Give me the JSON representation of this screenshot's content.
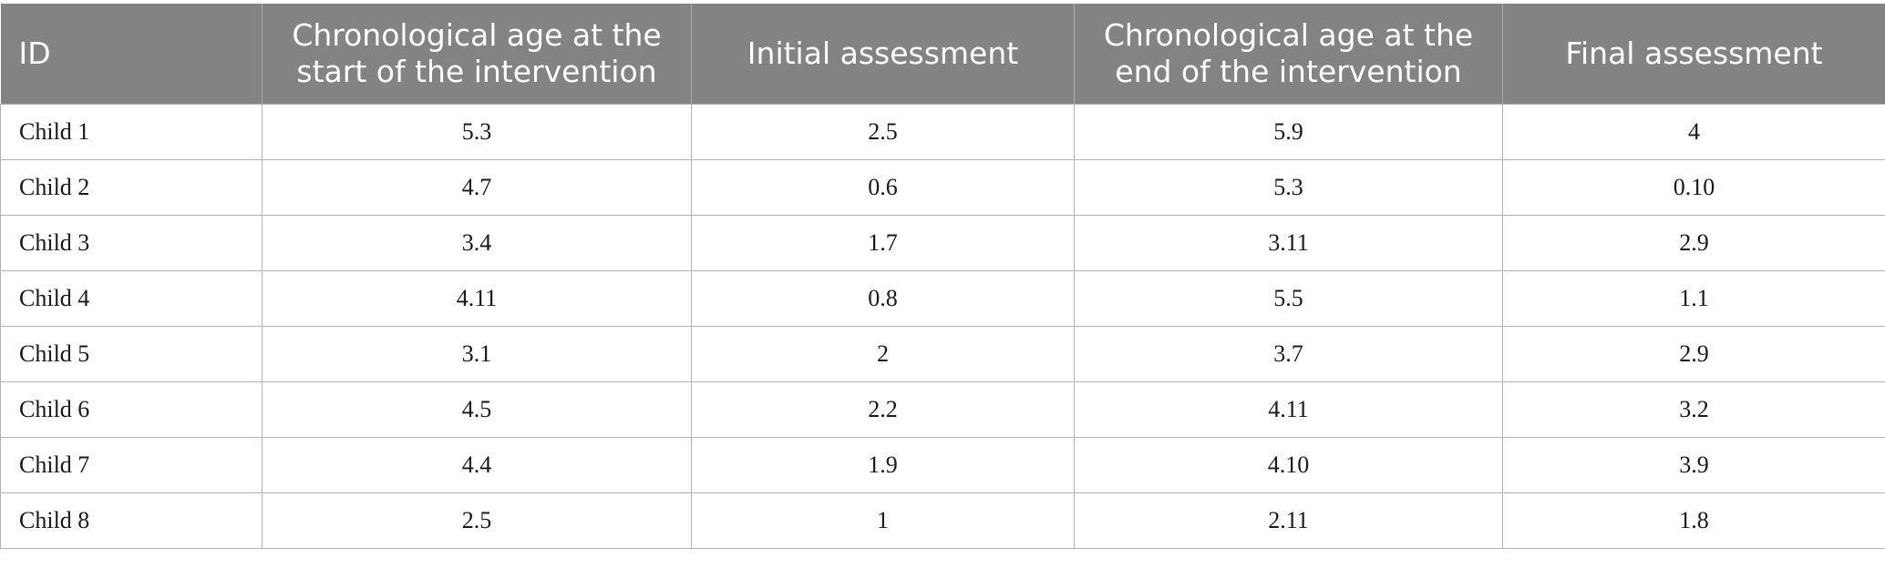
{
  "table": {
    "headers": [
      "ID",
      "Chronological age at the start of the intervention",
      "Initial assessment",
      "Chronological age at the end of the intervention",
      "Final assessment"
    ],
    "rows": [
      [
        "Child 1",
        "5.3",
        "2.5",
        "5.9",
        "4"
      ],
      [
        "Child 2",
        "4.7",
        "0.6",
        "5.3",
        "0.10"
      ],
      [
        "Child 3",
        "3.4",
        "1.7",
        "3.11",
        "2.9"
      ],
      [
        "Child 4",
        "4.11",
        "0.8",
        "5.5",
        "1.1"
      ],
      [
        "Child 5",
        "3.1",
        "2",
        "3.7",
        "2.9"
      ],
      [
        "Child 6",
        "4.5",
        "2.2",
        "4.11",
        "3.2"
      ],
      [
        "Child 7",
        "4.4",
        "1.9",
        "4.10",
        "3.9"
      ],
      [
        "Child 8",
        "2.5",
        "1",
        "2.11",
        "1.8"
      ]
    ]
  }
}
